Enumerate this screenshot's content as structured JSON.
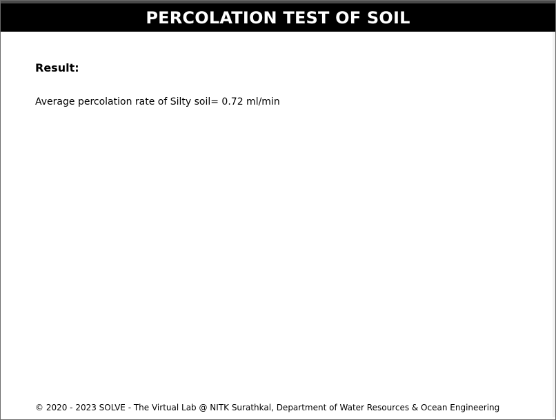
{
  "header": {
    "title": "PERCOLATION TEST OF SOIL"
  },
  "result": {
    "heading": "Result:",
    "text": "Average percolation rate of Silty soil= 0.72 ml/min"
  },
  "footer": {
    "text": "© 2020 - 2023 SOLVE - The Virtual Lab @ NITK Surathkal, Department of Water Resources & Ocean Engineering"
  },
  "colors": {
    "header_background": "#000000",
    "header_text": "#ffffff",
    "page_background": "#ffffff"
  }
}
